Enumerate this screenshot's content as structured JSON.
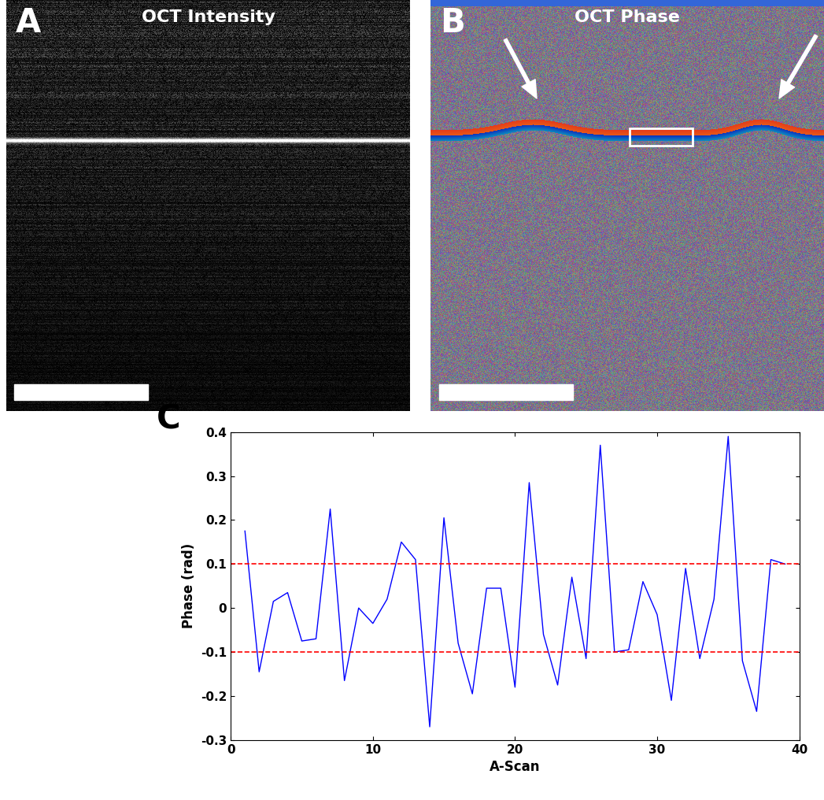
{
  "panels": [
    {
      "type": "image",
      "panel_label": "A",
      "title": "OCT Intensity"
    },
    {
      "type": "image",
      "panel_label": "B",
      "title": "OCT Phase"
    }
  ],
  "chart_data": {
    "type": "line",
    "panel_label": "C",
    "x_label": "A-Scan",
    "y_label": "Phase (rad)",
    "x": [
      1,
      2,
      3,
      4,
      5,
      6,
      7,
      8,
      9,
      10,
      11,
      12,
      13,
      14,
      15,
      16,
      17,
      18,
      19,
      20,
      21,
      22,
      23,
      24,
      25,
      26,
      27,
      28,
      29,
      30,
      31,
      32,
      33,
      34,
      35,
      36,
      37,
      38,
      39
    ],
    "values": [
      0.175,
      -0.145,
      0.015,
      0.035,
      -0.075,
      -0.07,
      0.225,
      -0.165,
      0.0,
      -0.035,
      0.02,
      0.15,
      0.11,
      -0.27,
      0.205,
      -0.08,
      -0.195,
      0.045,
      0.045,
      -0.18,
      0.285,
      -0.06,
      -0.175,
      0.07,
      -0.115,
      0.37,
      -0.1,
      -0.095,
      0.06,
      -0.015,
      -0.21,
      0.09,
      -0.115,
      0.02,
      0.39,
      -0.12,
      -0.235,
      0.11,
      0.1
    ],
    "color": "#0000ff",
    "reference_lines": [
      {
        "value": 0.1,
        "color": "#ff0000",
        "line_style": "dashed"
      },
      {
        "value": -0.1,
        "color": "#ff0000",
        "line_style": "dashed"
      }
    ],
    "xlim": [
      0,
      40
    ],
    "xticks": [
      0,
      10,
      20,
      30,
      40
    ],
    "ylim": [
      -0.3,
      0.4
    ],
    "yticks": [
      -0.3,
      -0.2,
      -0.1,
      0,
      0.1,
      0.2,
      0.3,
      0.4
    ]
  }
}
